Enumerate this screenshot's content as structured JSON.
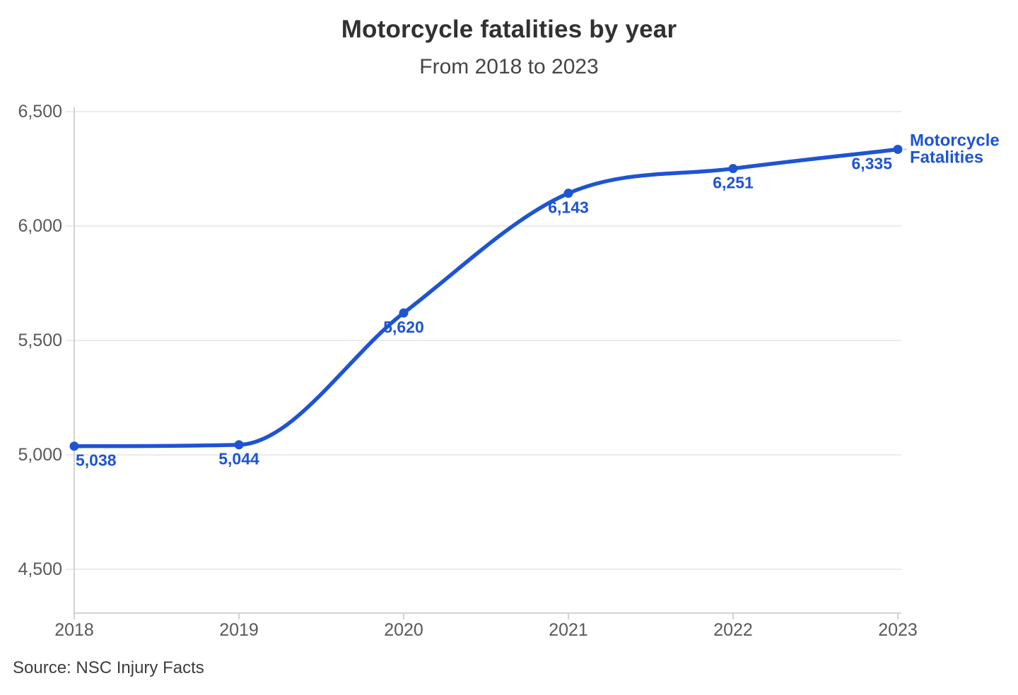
{
  "header": {
    "title": "Motorcycle fatalities by year",
    "subtitle": "From 2018 to 2023"
  },
  "source": "Source: NSC Injury Facts",
  "colors": {
    "accent": "#1e54d2",
    "grid": "#ebebeb",
    "axis": "#d2d2d2",
    "leader": "#c9cdd4",
    "tickText": "#595959",
    "titleText": "#313131",
    "subtitleText": "#454545",
    "sourceText": "#3d3d3d"
  },
  "chart_data": {
    "type": "line",
    "title": "Motorcycle fatalities by year",
    "subtitle": "From 2018 to 2023",
    "x": [
      2018,
      2019,
      2020,
      2021,
      2022,
      2023
    ],
    "xtick_labels": [
      "2018",
      "2019",
      "2020",
      "2021",
      "2022",
      "2023"
    ],
    "series": [
      {
        "name": "Motorcycle Fatalities",
        "values": [
          5038,
          5044,
          5620,
          6143,
          6251,
          6335
        ]
      }
    ],
    "point_labels": [
      "5,038",
      "5,044",
      "5,620",
      "6,143",
      "6,251",
      "6,335"
    ],
    "series_label_lines": [
      "Motorcycle",
      "Fatalities"
    ],
    "xlabel": "",
    "ylabel": "",
    "ylim": [
      4500,
      6500
    ],
    "yticks": [
      4500,
      5000,
      5500,
      6000,
      6500
    ],
    "ytick_labels": [
      "4,500",
      "5,000",
      "5,500",
      "6,000",
      "6,500"
    ],
    "grid": "horizontal",
    "legend_position": "end-of-line",
    "source": "Source: NSC Injury Facts"
  }
}
